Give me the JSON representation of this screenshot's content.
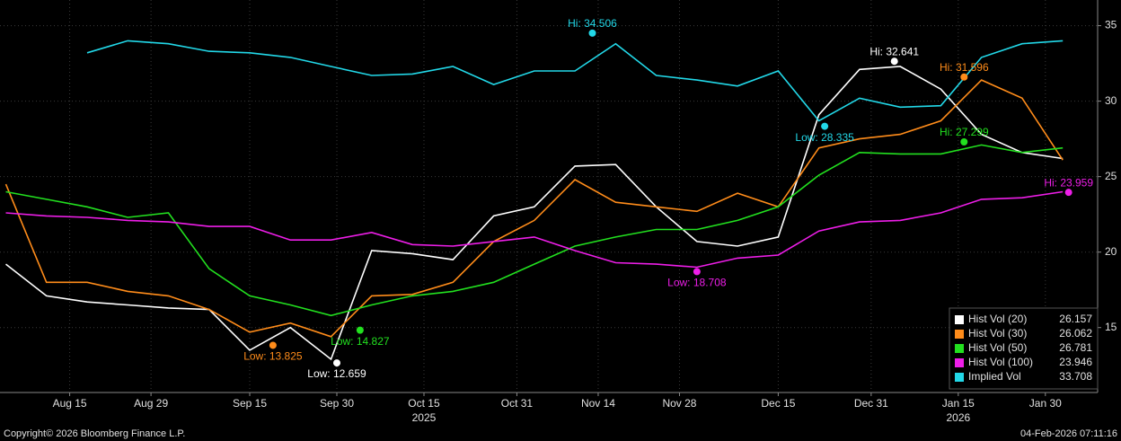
{
  "chart_data": {
    "type": "line",
    "x": [
      "2025-08-04",
      "2025-08-11",
      "2025-08-18",
      "2025-08-25",
      "2025-09-01",
      "2025-09-08",
      "2025-09-15",
      "2025-09-22",
      "2025-09-29",
      "2025-10-06",
      "2025-10-13",
      "2025-10-20",
      "2025-10-27",
      "2025-11-03",
      "2025-11-10",
      "2025-11-17",
      "2025-11-24",
      "2025-12-01",
      "2025-12-08",
      "2025-12-15",
      "2025-12-22",
      "2025-12-29",
      "2026-01-05",
      "2026-01-12",
      "2026-01-19",
      "2026-01-26",
      "2026-02-02"
    ],
    "series": [
      {
        "name": "Hist Vol (20)",
        "color": "#ffffff",
        "last_value": 26.157,
        "values": [
          19.2,
          17.1,
          16.7,
          16.5,
          16.3,
          16.2,
          13.5,
          15,
          12.9,
          20.1,
          19.9,
          19.5,
          22.4,
          23,
          25.7,
          25.8,
          23,
          20.7,
          20.4,
          21,
          29.1,
          32.1,
          32.3,
          30.8,
          27.8,
          26.6,
          26.2
        ]
      },
      {
        "name": "Hist Vol (30)",
        "color": "#ff8c1a",
        "last_value": 26.062,
        "values": [
          24.5,
          18,
          18,
          17.4,
          17.1,
          16.2,
          14.7,
          15.3,
          14.4,
          17.1,
          17.2,
          18,
          20.7,
          22.1,
          24.8,
          23.3,
          23,
          22.7,
          23.9,
          23,
          26.9,
          27.5,
          27.8,
          28.7,
          31.4,
          30.2,
          26.1
        ]
      },
      {
        "name": "Hist Vol (50)",
        "color": "#22e01f",
        "last_value": 26.781,
        "values": [
          24,
          23.5,
          23,
          22.3,
          22.6,
          18.9,
          17.1,
          16.5,
          15.8,
          16.5,
          17.1,
          17.4,
          18,
          19.2,
          20.4,
          21,
          21.5,
          21.5,
          22.1,
          23,
          25.1,
          26.6,
          26.5,
          26.5,
          27.1,
          26.6,
          26.9
        ]
      },
      {
        "name": "Hist Vol (100)",
        "color": "#ee1ee8",
        "last_value": 23.946,
        "values": [
          22.6,
          22.4,
          22.3,
          22.1,
          22,
          21.7,
          21.7,
          20.8,
          20.8,
          21.3,
          20.5,
          20.4,
          20.7,
          21,
          20.1,
          19.3,
          19.2,
          19,
          19.6,
          19.8,
          21.4,
          22,
          22.1,
          22.6,
          23.5,
          23.6,
          24
        ]
      },
      {
        "name": "Implied Vol",
        "color": "#22d8e8",
        "last_value": 33.708,
        "values": [
          null,
          null,
          33.2,
          34,
          33.8,
          33.3,
          33.2,
          32.9,
          32.3,
          31.7,
          31.8,
          32.3,
          31.1,
          32,
          32,
          33.8,
          31.7,
          31.4,
          31,
          32,
          28.7,
          30.2,
          29.6,
          29.7,
          32.9,
          33.8,
          34
        ]
      }
    ],
    "annotations": [
      {
        "series": 0,
        "x": "2025-09-30",
        "value": 12.659,
        "label": "Low: 12.659",
        "position": "below"
      },
      {
        "series": 1,
        "x": "2025-09-19",
        "value": 13.825,
        "label": "Low: 13.825",
        "position": "below"
      },
      {
        "series": 2,
        "x": "2025-10-04",
        "value": 14.827,
        "label": "Low: 14.827",
        "position": "below"
      },
      {
        "series": 4,
        "x": "2025-11-13",
        "value": 34.506,
        "label": "Hi: 34.506",
        "position": "above"
      },
      {
        "series": 3,
        "x": "2025-12-01",
        "value": 18.708,
        "label": "Low: 18.708",
        "position": "below"
      },
      {
        "series": 4,
        "x": "2025-12-23",
        "value": 28.335,
        "label": "Low: 28.335",
        "position": "below"
      },
      {
        "series": 0,
        "x": "2026-01-04",
        "value": 32.641,
        "label": "Hi: 32.641",
        "position": "above"
      },
      {
        "series": 1,
        "x": "2026-01-16",
        "value": 31.596,
        "label": "Hi: 31.596",
        "position": "above"
      },
      {
        "series": 2,
        "x": "2026-01-16",
        "value": 27.299,
        "label": "Hi: 27.299",
        "position": "above"
      },
      {
        "series": 3,
        "x": "2026-02-03",
        "value": 23.959,
        "label": "Hi: 23.959",
        "position": "above"
      }
    ],
    "xlim": [
      "2025-08-03",
      "2026-02-08"
    ],
    "xticks": [
      {
        "value": "2025-08-15",
        "label": "Aug 15"
      },
      {
        "value": "2025-08-29",
        "label": "Aug 29"
      },
      {
        "value": "2025-09-15",
        "label": "Sep 15"
      },
      {
        "value": "2025-09-30",
        "label": "Sep 30"
      },
      {
        "value": "2025-10-15",
        "label": "Oct 15"
      },
      {
        "value": "2025-10-31",
        "label": "Oct 31"
      },
      {
        "value": "2025-11-14",
        "label": "Nov 14"
      },
      {
        "value": "2025-11-28",
        "label": "Nov 28"
      },
      {
        "value": "2025-12-15",
        "label": "Dec 15"
      },
      {
        "value": "2025-12-31",
        "label": "Dec 31"
      },
      {
        "value": "2026-01-15",
        "label": "Jan 15"
      },
      {
        "value": "2026-01-30",
        "label": "Jan 30"
      }
    ],
    "year_labels": [
      {
        "value": "2025-10-15",
        "label": "2025"
      },
      {
        "value": "2026-01-15",
        "label": "2026"
      }
    ],
    "ylim": [
      10.7,
      36.7
    ],
    "yticks": [
      15,
      20,
      25,
      30,
      35
    ],
    "grid": true,
    "legend": "lower right",
    "copyright": "Copyright© 2026 Bloomberg Finance L.P.",
    "timestamp": "04-Feb-2026 07:11:16"
  }
}
